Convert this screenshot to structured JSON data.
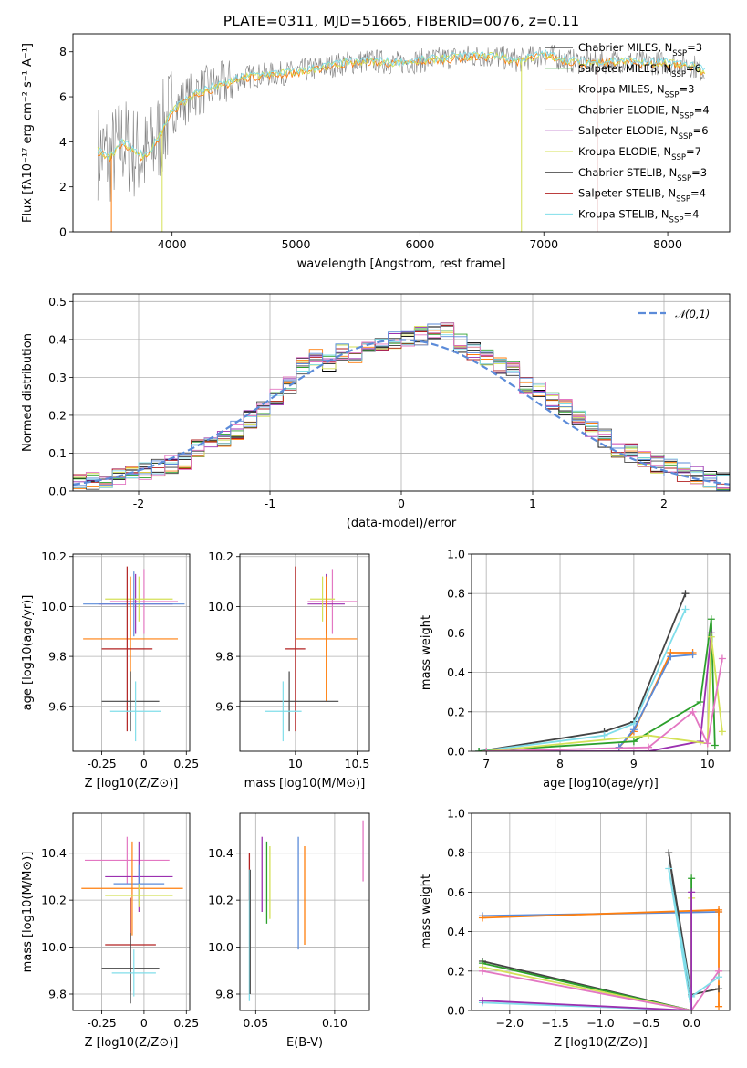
{
  "figure": {
    "title": "PLATE=0311, MJD=51665, FIBERID=0076, z=0.11"
  },
  "chart_data": [
    {
      "id": "spectrum",
      "type": "line",
      "xlabel": "wavelength [Angstrom, rest frame]",
      "ylabel": "Flux [fλ10⁻¹⁷ erg cm⁻² s⁻¹ A⁻¹]",
      "xlim": [
        3200,
        8500
      ],
      "ylim": [
        0,
        8.8
      ],
      "xticks": [
        4000,
        5000,
        6000,
        7000,
        8000
      ],
      "yticks": [
        0,
        2,
        4,
        6,
        8
      ],
      "data_curve": {
        "x": [
          3400,
          3500,
          3600,
          3700,
          3800,
          3900,
          4000,
          4200,
          4400,
          4600,
          4800,
          5000,
          5200,
          5400,
          5600,
          5800,
          6000,
          6200,
          6400,
          6600,
          6800,
          7000,
          7200,
          7400,
          7600,
          7800,
          8000,
          8200,
          8300
        ],
        "y": [
          3.6,
          3.3,
          4.0,
          3.5,
          3.3,
          4.3,
          5.4,
          6.2,
          6.5,
          6.9,
          7.0,
          7.1,
          7.3,
          7.5,
          7.6,
          7.5,
          7.6,
          7.7,
          7.8,
          7.8,
          7.6,
          7.9,
          7.6,
          7.5,
          7.6,
          7.5,
          7.5,
          7.4,
          7.1
        ]
      },
      "legend": [
        {
          "label": "Chabrier MILES, N",
          "sub": "SSP",
          "suffix": "=3",
          "color": "#000000"
        },
        {
          "label": "Salpeter MILES, N",
          "sub": "SSP",
          "suffix": "=6",
          "color": "#2ca02c"
        },
        {
          "label": "Kroupa MILES, N",
          "sub": "SSP",
          "suffix": "=3",
          "color": "#ff7f0e"
        },
        {
          "label": "Chabrier ELODIE, N",
          "sub": "SSP",
          "suffix": "=4",
          "color": "#444444"
        },
        {
          "label": "Salpeter ELODIE, N",
          "sub": "SSP",
          "suffix": "=6",
          "color": "#9b30b0"
        },
        {
          "label": "Kroupa ELODIE, N",
          "sub": "SSP",
          "suffix": "=7",
          "color": "#d4e157"
        },
        {
          "label": "Chabrier STELIB, N",
          "sub": "SSP",
          "suffix": "=3",
          "color": "#333333"
        },
        {
          "label": "Salpeter STELIB, N",
          "sub": "SSP",
          "suffix": "=4",
          "color": "#b22222"
        },
        {
          "label": "Kroupa STELIB, N",
          "sub": "SSP",
          "suffix": "=4",
          "color": "#80deea"
        }
      ]
    },
    {
      "id": "residuals",
      "type": "histogram",
      "xlabel": "(data-model)/error",
      "ylabel": "Normed distribution",
      "xlim": [
        -2.5,
        2.5
      ],
      "ylim": [
        0,
        0.52
      ],
      "xticks": [
        -2,
        -1,
        0,
        1,
        2
      ],
      "yticks": [
        0.0,
        0.1,
        0.2,
        0.3,
        0.4,
        0.5
      ],
      "legend": "𝒩(0,1)",
      "gaussian": {
        "mean": 0,
        "sigma": 1,
        "color": "#5b8bd9"
      },
      "hist_x": [
        -2.5,
        -2.4,
        -2.3,
        -2.2,
        -2.1,
        -2.0,
        -1.9,
        -1.8,
        -1.7,
        -1.6,
        -1.5,
        -1.4,
        -1.3,
        -1.2,
        -1.1,
        -1.0,
        -0.9,
        -0.8,
        -0.7,
        -0.6,
        -0.5,
        -0.4,
        -0.3,
        -0.2,
        -0.1,
        0.0,
        0.1,
        0.2,
        0.3,
        0.4,
        0.5,
        0.6,
        0.7,
        0.8,
        0.9,
        1.0,
        1.1,
        1.2,
        1.3,
        1.4,
        1.5,
        1.6,
        1.7,
        1.8,
        1.9,
        2.0,
        2.1,
        2.2,
        2.3,
        2.4
      ],
      "hist_y": [
        0.02,
        0.025,
        0.03,
        0.04,
        0.045,
        0.05,
        0.06,
        0.07,
        0.08,
        0.11,
        0.12,
        0.14,
        0.16,
        0.19,
        0.22,
        0.25,
        0.28,
        0.33,
        0.35,
        0.34,
        0.37,
        0.36,
        0.38,
        0.39,
        0.4,
        0.4,
        0.41,
        0.42,
        0.42,
        0.39,
        0.37,
        0.35,
        0.33,
        0.32,
        0.28,
        0.27,
        0.24,
        0.22,
        0.19,
        0.16,
        0.14,
        0.11,
        0.1,
        0.08,
        0.07,
        0.06,
        0.05,
        0.04,
        0.03,
        0.025
      ],
      "series_colors": [
        "#000000",
        "#2ca02c",
        "#ff7f0e",
        "#444444",
        "#9b30b0",
        "#d4e157",
        "#333333",
        "#b22222",
        "#80deea",
        "#e377c2",
        "#5b8bd9"
      ]
    },
    {
      "id": "age-vs-Z",
      "type": "errorbar",
      "xlabel": "Z [log10(Z/Z⊙)]",
      "ylabel": "age  [log10(age/yr)]",
      "xlim": [
        -0.42,
        0.27
      ],
      "ylim": [
        9.42,
        10.21
      ],
      "xticks": [
        -0.25,
        0.0,
        0.25
      ],
      "ytick_labels": [
        "9.6",
        "9.8",
        "10.0",
        "10.2"
      ],
      "yticks": [
        9.6,
        9.8,
        10.0,
        10.2
      ],
      "points": [
        {
          "x": 0.0,
          "y": 10.02,
          "xerr": 0.2,
          "yerr": 0.13,
          "color": "#e377c2"
        },
        {
          "x": -0.05,
          "y": 10.01,
          "xerr": 0.22,
          "yerr": 0.12,
          "color": "#9b30b0"
        },
        {
          "x": -0.03,
          "y": 10.03,
          "xerr": 0.2,
          "yerr": 0.09,
          "color": "#d4e157"
        },
        {
          "x": -0.06,
          "y": 10.01,
          "xerr": 0.3,
          "yerr": 0.13,
          "color": "#5b8bd9"
        },
        {
          "x": -0.08,
          "y": 9.87,
          "xerr": 0.28,
          "yerr": 0.25,
          "color": "#ff7f0e"
        },
        {
          "x": -0.1,
          "y": 9.83,
          "xerr": 0.15,
          "yerr": 0.33,
          "color": "#b22222"
        },
        {
          "x": -0.08,
          "y": 9.62,
          "xerr": 0.17,
          "yerr": 0.12,
          "color": "#444444"
        },
        {
          "x": -0.05,
          "y": 9.58,
          "xerr": 0.15,
          "yerr": 0.12,
          "color": "#80deea"
        }
      ]
    },
    {
      "id": "age-vs-mass",
      "type": "errorbar",
      "xlabel": "mass [log10(M/M⊙)]",
      "ylabel": "",
      "xlim": [
        9.55,
        10.6
      ],
      "ylim": [
        9.42,
        10.21
      ],
      "xticks": [
        10.0,
        10.5
      ],
      "ytick_labels": [
        "9.6",
        "9.8",
        "10.0",
        "10.2"
      ],
      "yticks": [
        9.6,
        9.8,
        10.0,
        10.2
      ],
      "points": [
        {
          "x": 10.3,
          "y": 10.02,
          "xerr": 0.2,
          "yerr": 0.13,
          "color": "#e377c2"
        },
        {
          "x": 10.25,
          "y": 10.01,
          "xerr": 0.15,
          "yerr": 0.12,
          "color": "#9b30b0"
        },
        {
          "x": 10.22,
          "y": 10.03,
          "xerr": 0.1,
          "yerr": 0.09,
          "color": "#d4e157"
        },
        {
          "x": 10.25,
          "y": 9.87,
          "xerr": 0.25,
          "yerr": 0.25,
          "color": "#ff7f0e"
        },
        {
          "x": 10.0,
          "y": 9.83,
          "xerr": 0.08,
          "yerr": 0.33,
          "color": "#b22222"
        },
        {
          "x": 9.95,
          "y": 9.62,
          "xerr": 0.4,
          "yerr": 0.12,
          "color": "#444444"
        },
        {
          "x": 9.9,
          "y": 9.58,
          "xerr": 0.15,
          "yerr": 0.12,
          "color": "#80deea"
        }
      ]
    },
    {
      "id": "mass-weight-vs-age",
      "type": "line",
      "xlabel": "age  [log10(age/yr)]",
      "ylabel": "mass weight",
      "xlim": [
        6.8,
        10.3
      ],
      "ylim": [
        0,
        1.0
      ],
      "xticks": [
        7,
        8,
        9,
        10
      ],
      "yticks": [
        0.0,
        0.2,
        0.4,
        0.6,
        0.8,
        1.0
      ],
      "series": [
        {
          "color": "#444444",
          "x": [
            6.9,
            8.6,
            9.0,
            9.7
          ],
          "y": [
            0.0,
            0.1,
            0.15,
            0.8
          ]
        },
        {
          "color": "#80deea",
          "x": [
            6.9,
            8.6,
            9.0,
            9.7
          ],
          "y": [
            0.0,
            0.08,
            0.14,
            0.72
          ]
        },
        {
          "color": "#ff7f0e",
          "x": [
            8.8,
            9.0,
            9.5,
            9.8
          ],
          "y": [
            0.02,
            0.1,
            0.5,
            0.5
          ]
        },
        {
          "color": "#5b8bd9",
          "x": [
            8.8,
            9.0,
            9.5,
            9.8
          ],
          "y": [
            0.02,
            0.11,
            0.48,
            0.49
          ]
        },
        {
          "color": "#2ca02c",
          "x": [
            6.9,
            9.0,
            9.9,
            10.05,
            10.1
          ],
          "y": [
            0.0,
            0.05,
            0.25,
            0.67,
            0.03
          ]
        },
        {
          "color": "#9b30b0",
          "x": [
            7.0,
            9.2,
            9.9,
            10.05
          ],
          "y": [
            0.0,
            0.0,
            0.05,
            0.6
          ]
        },
        {
          "color": "#d4e157",
          "x": [
            7.0,
            9.2,
            10.0,
            10.05,
            10.2
          ],
          "y": [
            0.0,
            0.08,
            0.04,
            0.58,
            0.1
          ]
        },
        {
          "color": "#e377c2",
          "x": [
            7.0,
            9.2,
            9.8,
            10.0,
            10.2
          ],
          "y": [
            0.0,
            0.02,
            0.2,
            0.04,
            0.47
          ]
        }
      ]
    },
    {
      "id": "mass-vs-Z",
      "type": "errorbar",
      "xlabel": "Z [log10(Z/Z⊙)]",
      "ylabel": "mass [log10(M/M⊙)]",
      "xlim": [
        -0.42,
        0.27
      ],
      "ylim": [
        9.73,
        10.57
      ],
      "xticks": [
        -0.25,
        0.0,
        0.25
      ],
      "ytick_labels": [
        "9.8",
        "10.0",
        "10.2",
        "10.4"
      ],
      "yticks": [
        9.8,
        10.0,
        10.2,
        10.4
      ],
      "points": [
        {
          "x": -0.1,
          "y": 10.37,
          "xerr": 0.25,
          "yerr": 0.1,
          "color": "#e377c2"
        },
        {
          "x": -0.03,
          "y": 10.3,
          "xerr": 0.2,
          "yerr": 0.15,
          "color": "#9b30b0"
        },
        {
          "x": -0.03,
          "y": 10.27,
          "xerr": 0.15,
          "yerr": 0.08,
          "color": "#5b8bd9"
        },
        {
          "x": -0.07,
          "y": 10.25,
          "xerr": 0.3,
          "yerr": 0.2,
          "color": "#ff7f0e"
        },
        {
          "x": -0.03,
          "y": 10.22,
          "xerr": 0.2,
          "yerr": 0.05,
          "color": "#d4e157"
        },
        {
          "x": -0.08,
          "y": 10.01,
          "xerr": 0.15,
          "yerr": 0.2,
          "color": "#b22222"
        },
        {
          "x": -0.08,
          "y": 9.91,
          "xerr": 0.17,
          "yerr": 0.15,
          "color": "#444444"
        },
        {
          "x": -0.06,
          "y": 9.89,
          "xerr": 0.13,
          "yerr": 0.1,
          "color": "#80deea"
        }
      ]
    },
    {
      "id": "mass-vs-EBV",
      "type": "errorbar",
      "xlabel": "E(B-V)",
      "ylabel": "",
      "xlim": [
        0.04,
        0.122
      ],
      "ylim": [
        9.73,
        10.57
      ],
      "xticks": [
        0.05,
        0.1
      ],
      "xtick_labels": [
        "0.05",
        "0.10"
      ],
      "ytick_labels": [
        "9.8",
        "10.0",
        "10.2",
        "10.4"
      ],
      "yticks": [
        9.8,
        10.0,
        10.2,
        10.4
      ],
      "bars": [
        {
          "x": 0.046,
          "ylo": 10.2,
          "yhi": 10.4,
          "color": "#b22222"
        },
        {
          "x": 0.046,
          "ylo": 9.77,
          "yhi": 10.33,
          "color": "#80deea"
        },
        {
          "x": 0.0465,
          "ylo": 9.8,
          "yhi": 10.33,
          "color": "#444444"
        },
        {
          "x": 0.054,
          "ylo": 10.15,
          "yhi": 10.47,
          "color": "#9b30b0"
        },
        {
          "x": 0.057,
          "ylo": 10.1,
          "yhi": 10.45,
          "color": "#2ca02c"
        },
        {
          "x": 0.059,
          "ylo": 10.12,
          "yhi": 10.43,
          "color": "#d4e157"
        },
        {
          "x": 0.077,
          "ylo": 9.99,
          "yhi": 10.47,
          "color": "#5b8bd9"
        },
        {
          "x": 0.081,
          "ylo": 10.01,
          "yhi": 10.43,
          "color": "#ff7f0e"
        },
        {
          "x": 0.118,
          "ylo": 10.28,
          "yhi": 10.54,
          "color": "#e377c2"
        }
      ]
    },
    {
      "id": "mass-weight-vs-Z",
      "type": "line",
      "xlabel": "Z [log10(Z/Z⊙)]",
      "ylabel": "mass weight",
      "xlim": [
        -2.42,
        0.42
      ],
      "ylim": [
        0,
        1.0
      ],
      "xticks": [
        -2.0,
        -1.5,
        -1.0,
        -0.5,
        0.0
      ],
      "xtick_labels": [
        "−2.0",
        "−1.5",
        "−1.0",
        "−0.5",
        "0.0"
      ],
      "yticks": [
        0.0,
        0.2,
        0.4,
        0.6,
        0.8,
        1.0
      ],
      "series": [
        {
          "color": "#5b8bd9",
          "x": [
            -2.3,
            0.3
          ],
          "y": [
            0.48,
            0.5
          ]
        },
        {
          "color": "#ff7f0e",
          "x": [
            -2.3,
            0.3,
            0.3,
            0.3
          ],
          "y": [
            0.47,
            0.51,
            0.5,
            0.02
          ]
        },
        {
          "color": "#444444",
          "x": [
            -2.3,
            0.0,
            -0.25,
            0.0,
            0.3
          ],
          "y": [
            0.25,
            0.0,
            0.8,
            0.08,
            0.11
          ]
        },
        {
          "color": "#2ca02c",
          "x": [
            -2.3,
            0.0,
            0.0
          ],
          "y": [
            0.24,
            0.0,
            0.67
          ]
        },
        {
          "color": "#d4e157",
          "x": [
            -2.3,
            0.0,
            0.0
          ],
          "y": [
            0.22,
            0.0,
            0.57
          ]
        },
        {
          "color": "#e377c2",
          "x": [
            -2.3,
            0.0,
            0.3
          ],
          "y": [
            0.2,
            0.0,
            0.2
          ]
        },
        {
          "color": "#80deea",
          "x": [
            -2.3,
            0.0,
            -0.25,
            0.0,
            0.3
          ],
          "y": [
            0.04,
            0.0,
            0.72,
            0.07,
            0.17
          ]
        },
        {
          "color": "#9b30b0",
          "x": [
            -2.3,
            0.0,
            0.0
          ],
          "y": [
            0.05,
            0.0,
            0.6
          ]
        }
      ]
    }
  ]
}
